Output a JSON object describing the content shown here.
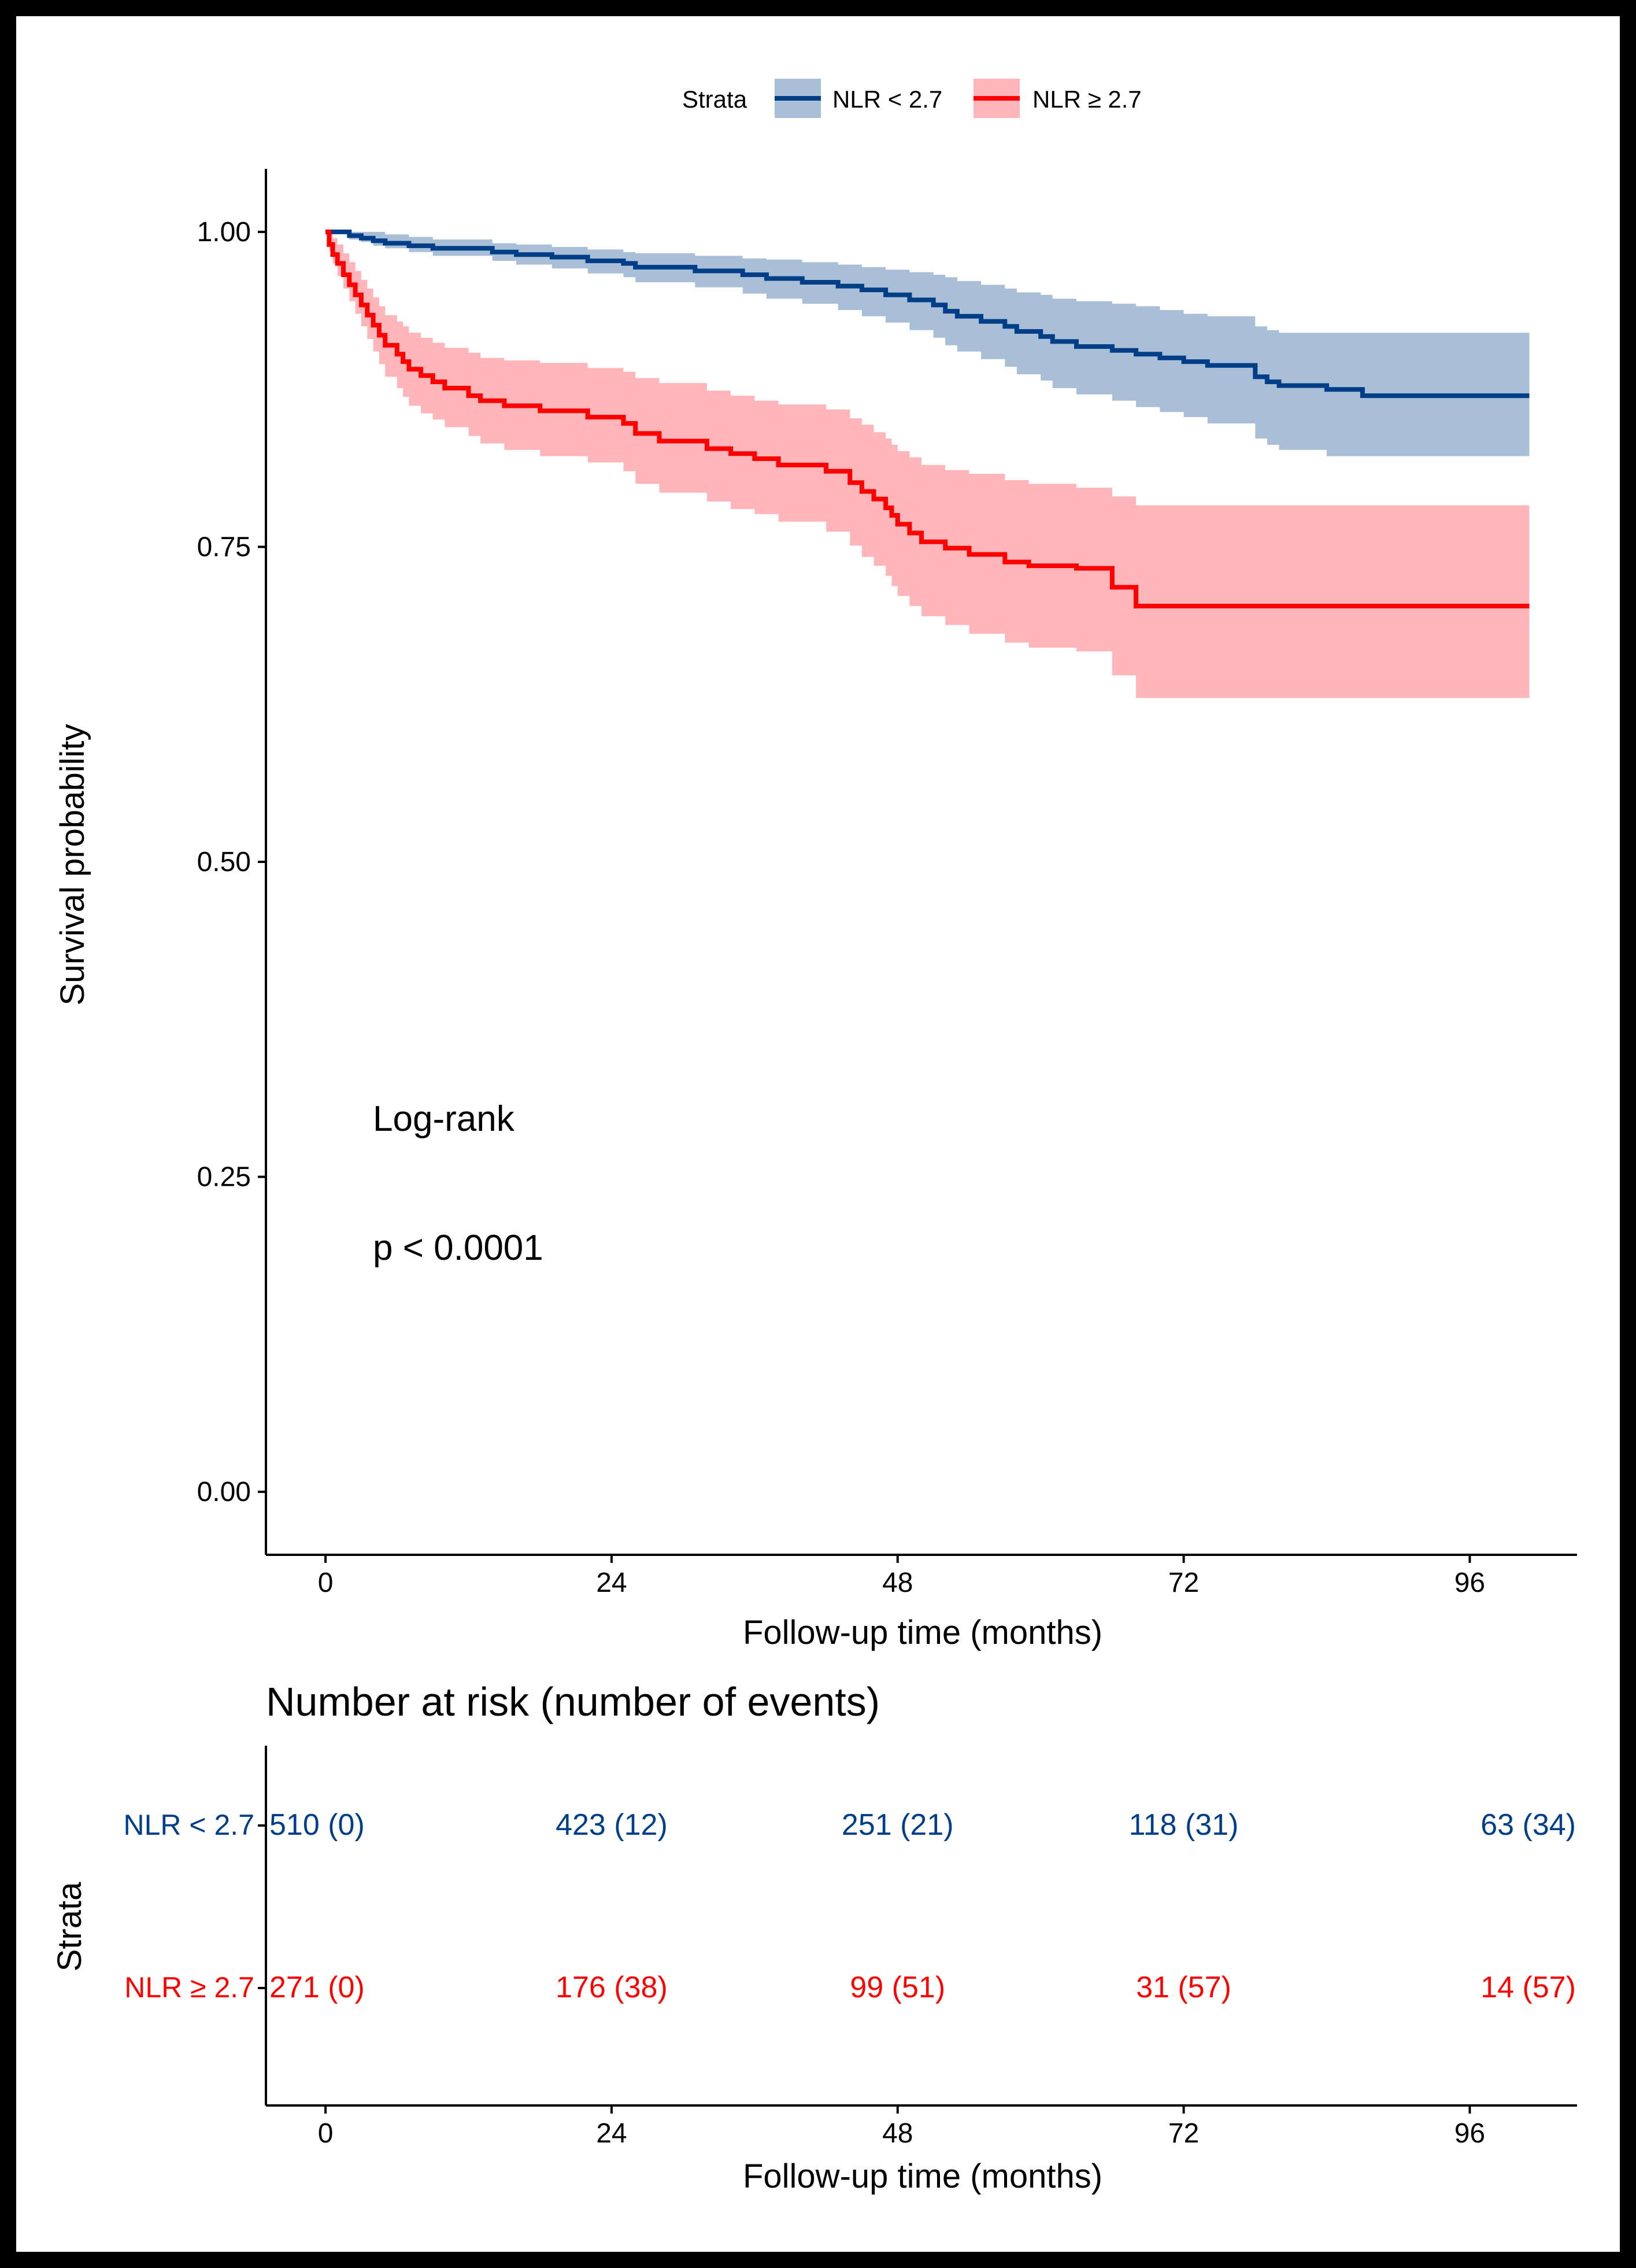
{
  "chart_data": {
    "type": "line",
    "subtype": "kaplan-meier",
    "xlabel": "Follow-up time (months)",
    "ylabel": "Survival probability",
    "xlim": [
      -5,
      105
    ],
    "ylim": [
      -0.05,
      1.05
    ],
    "x_ticks": [
      0,
      24,
      48,
      72,
      96
    ],
    "y_ticks": [
      0.0,
      0.25,
      0.5,
      0.75,
      1.0
    ],
    "y_tick_labels": [
      "0.00",
      "0.25",
      "0.50",
      "0.75",
      "1.00"
    ],
    "x_tick_labels": [
      "0",
      "24",
      "48",
      "72",
      "96"
    ],
    "legend": {
      "title": "Strata",
      "position": "top",
      "entries": [
        "NLR < 2.7",
        "NLR ≥ 2.7"
      ]
    },
    "annotation": {
      "line1": "Log-rank",
      "line2": "p < 0.0001"
    },
    "series": [
      {
        "name": "NLR < 2.7",
        "color": "#003f87",
        "band_color": "#a9bfd8",
        "x": [
          0,
          2,
          3,
          4,
          5,
          7,
          9,
          14,
          16,
          19,
          22,
          25,
          26,
          31,
          35,
          37,
          40,
          43,
          45,
          47,
          49,
          51,
          52,
          53,
          55,
          57,
          58,
          60,
          61,
          63,
          66,
          68,
          70,
          72,
          74,
          78,
          79,
          80,
          84,
          87,
          101
        ],
        "y": [
          1.0,
          0.997,
          0.995,
          0.993,
          0.991,
          0.989,
          0.987,
          0.984,
          0.982,
          0.98,
          0.977,
          0.975,
          0.972,
          0.969,
          0.966,
          0.963,
          0.96,
          0.957,
          0.954,
          0.95,
          0.946,
          0.942,
          0.937,
          0.933,
          0.929,
          0.925,
          0.921,
          0.917,
          0.913,
          0.909,
          0.906,
          0.903,
          0.9,
          0.897,
          0.894,
          0.885,
          0.881,
          0.878,
          0.875,
          0.87,
          0.87
        ],
        "lower": [
          1.0,
          0.994,
          0.992,
          0.989,
          0.987,
          0.984,
          0.981,
          0.977,
          0.974,
          0.971,
          0.967,
          0.964,
          0.96,
          0.956,
          0.951,
          0.947,
          0.943,
          0.938,
          0.933,
          0.928,
          0.922,
          0.916,
          0.91,
          0.905,
          0.899,
          0.893,
          0.887,
          0.882,
          0.876,
          0.871,
          0.866,
          0.861,
          0.857,
          0.853,
          0.848,
          0.836,
          0.831,
          0.827,
          0.822,
          0.822,
          0.822
        ],
        "upper": [
          1.0,
          1.0,
          1.0,
          1.0,
          0.998,
          0.996,
          0.994,
          0.991,
          0.99,
          0.988,
          0.986,
          0.984,
          0.983,
          0.981,
          0.979,
          0.978,
          0.976,
          0.974,
          0.972,
          0.97,
          0.968,
          0.966,
          0.964,
          0.961,
          0.958,
          0.955,
          0.952,
          0.95,
          0.947,
          0.945,
          0.943,
          0.941,
          0.938,
          0.935,
          0.933,
          0.925,
          0.922,
          0.92,
          0.92,
          0.92,
          0.92
        ]
      },
      {
        "name": "NLR ≥ 2.7",
        "color": "#ff0000",
        "band_color": "#ffb6bb",
        "x": [
          0,
          0.3,
          0.6,
          1,
          1.5,
          2,
          2.5,
          3,
          3.5,
          4,
          4.5,
          5,
          6,
          6.5,
          7,
          8,
          9,
          10,
          12,
          13,
          15,
          18,
          22,
          25,
          26,
          28,
          32,
          34,
          36,
          38,
          42,
          44,
          45,
          46,
          47,
          47.5,
          48,
          49,
          50,
          52,
          54,
          57,
          59,
          63,
          66,
          68,
          101
        ],
        "y": [
          1.0,
          0.99,
          0.982,
          0.975,
          0.966,
          0.958,
          0.95,
          0.942,
          0.934,
          0.926,
          0.918,
          0.91,
          0.903,
          0.897,
          0.891,
          0.886,
          0.881,
          0.876,
          0.87,
          0.866,
          0.862,
          0.858,
          0.853,
          0.848,
          0.84,
          0.834,
          0.828,
          0.824,
          0.82,
          0.815,
          0.81,
          0.801,
          0.794,
          0.788,
          0.781,
          0.775,
          0.768,
          0.761,
          0.754,
          0.749,
          0.744,
          0.738,
          0.735,
          0.733,
          0.718,
          0.703,
          0.703
        ],
        "lower": [
          1.0,
          0.985,
          0.975,
          0.965,
          0.955,
          0.945,
          0.935,
          0.925,
          0.915,
          0.905,
          0.895,
          0.885,
          0.876,
          0.869,
          0.862,
          0.856,
          0.851,
          0.845,
          0.838,
          0.832,
          0.827,
          0.822,
          0.817,
          0.81,
          0.8,
          0.793,
          0.786,
          0.78,
          0.776,
          0.77,
          0.762,
          0.751,
          0.742,
          0.735,
          0.727,
          0.719,
          0.711,
          0.703,
          0.695,
          0.688,
          0.681,
          0.674,
          0.67,
          0.667,
          0.648,
          0.63,
          0.63
        ],
        "upper": [
          1.0,
          1.0,
          0.995,
          0.99,
          0.983,
          0.976,
          0.969,
          0.962,
          0.955,
          0.948,
          0.941,
          0.934,
          0.929,
          0.925,
          0.92,
          0.916,
          0.912,
          0.908,
          0.904,
          0.9,
          0.898,
          0.896,
          0.892,
          0.889,
          0.884,
          0.88,
          0.874,
          0.87,
          0.866,
          0.863,
          0.859,
          0.852,
          0.847,
          0.841,
          0.836,
          0.831,
          0.826,
          0.821,
          0.815,
          0.811,
          0.808,
          0.803,
          0.8,
          0.797,
          0.79,
          0.783,
          0.783
        ]
      }
    ],
    "risk_table": {
      "title": "Number at risk (number of events)",
      "ylabel": "Strata",
      "xlabel": "Follow-up time (months)",
      "rows": [
        {
          "name": "NLR < 2.7",
          "color": "#003f87",
          "values": [
            "510 (0)",
            "423 (12)",
            "251 (21)",
            "118 (31)",
            "63 (34)"
          ]
        },
        {
          "name": "NLR ≥ 2.7",
          "color": "#ff0000",
          "values": [
            "271 (0)",
            "176 (38)",
            "99 (51)",
            "31 (57)",
            "14 (57)"
          ]
        }
      ]
    }
  }
}
